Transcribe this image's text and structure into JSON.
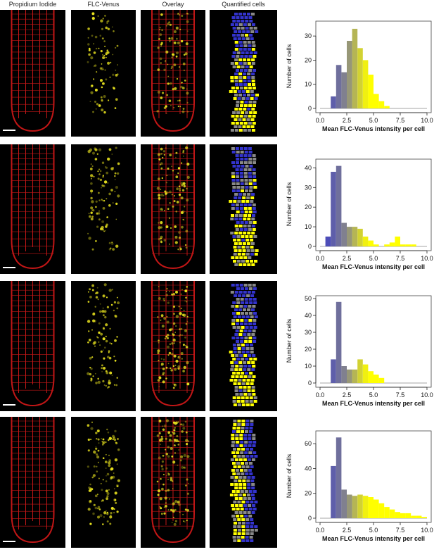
{
  "headers": {
    "pi": "Propidium Iodide",
    "flc": "FLC-Venus",
    "overlay": "Overlay",
    "quant": "Quantified cells"
  },
  "colors": {
    "pi_red": "#e21a1a",
    "venus_yellow": "#e8e21e",
    "bin_low": "#3333cc",
    "bin_mid": "#888888",
    "bin_high": "#ffff00",
    "background": "#000000"
  },
  "chart_data": [
    {
      "type": "bar",
      "xlabel": "Mean FLC-Venus intensity per cell",
      "ylabel": "Number of cells",
      "xlim": [
        0,
        10
      ],
      "ylim": [
        0,
        35
      ],
      "xticks": [
        "0.0",
        "2.5",
        "5.0",
        "7.5",
        "10.0"
      ],
      "yticks": [
        "0",
        "10",
        "20",
        "30"
      ],
      "bin_width": 0.5,
      "bins": [
        {
          "x0": 1.0,
          "value": 5
        },
        {
          "x0": 1.5,
          "value": 18
        },
        {
          "x0": 2.0,
          "value": 15
        },
        {
          "x0": 2.5,
          "value": 28
        },
        {
          "x0": 3.0,
          "value": 33
        },
        {
          "x0": 3.5,
          "value": 25
        },
        {
          "x0": 4.0,
          "value": 20
        },
        {
          "x0": 4.5,
          "value": 14
        },
        {
          "x0": 5.0,
          "value": 6
        },
        {
          "x0": 5.5,
          "value": 3
        },
        {
          "x0": 6.0,
          "value": 1
        }
      ]
    },
    {
      "type": "bar",
      "xlabel": "Mean FLC-Venus intensity per cell",
      "ylabel": "Number of cells",
      "xlim": [
        0,
        10
      ],
      "ylim": [
        0,
        43
      ],
      "xticks": [
        "0.0",
        "2.5",
        "5.0",
        "7.5",
        "10.0"
      ],
      "yticks": [
        "0",
        "10",
        "20",
        "30",
        "40"
      ],
      "bin_width": 0.5,
      "bins": [
        {
          "x0": 0.5,
          "value": 5
        },
        {
          "x0": 1.0,
          "value": 38
        },
        {
          "x0": 1.5,
          "value": 41
        },
        {
          "x0": 2.0,
          "value": 12
        },
        {
          "x0": 2.5,
          "value": 10
        },
        {
          "x0": 3.0,
          "value": 10
        },
        {
          "x0": 3.5,
          "value": 9
        },
        {
          "x0": 4.0,
          "value": 5
        },
        {
          "x0": 4.5,
          "value": 3
        },
        {
          "x0": 5.0,
          "value": 1
        },
        {
          "x0": 6.0,
          "value": 1
        },
        {
          "x0": 6.5,
          "value": 2
        },
        {
          "x0": 7.0,
          "value": 5
        },
        {
          "x0": 7.5,
          "value": 1
        },
        {
          "x0": 8.0,
          "value": 1
        },
        {
          "x0": 8.5,
          "value": 1
        }
      ]
    },
    {
      "type": "bar",
      "xlabel": "Mean FLC-Venus intensity per cell",
      "ylabel": "Number of cells",
      "xlim": [
        0,
        10
      ],
      "ylim": [
        0,
        50
      ],
      "xticks": [
        "0.0",
        "2.5",
        "5.0",
        "7.5",
        "10.0"
      ],
      "yticks": [
        "0",
        "10",
        "20",
        "30",
        "40",
        "50"
      ],
      "bin_width": 0.5,
      "bins": [
        {
          "x0": 1.0,
          "value": 14
        },
        {
          "x0": 1.5,
          "value": 48
        },
        {
          "x0": 2.0,
          "value": 10
        },
        {
          "x0": 2.5,
          "value": 8
        },
        {
          "x0": 3.0,
          "value": 8
        },
        {
          "x0": 3.5,
          "value": 14
        },
        {
          "x0": 4.0,
          "value": 11
        },
        {
          "x0": 4.5,
          "value": 7
        },
        {
          "x0": 5.0,
          "value": 5
        },
        {
          "x0": 5.5,
          "value": 3
        }
      ]
    },
    {
      "type": "bar",
      "xlabel": "Mean FLC-Venus intensity per cell",
      "ylabel": "Number of cells",
      "xlim": [
        0,
        10
      ],
      "ylim": [
        0,
        68
      ],
      "xticks": [
        "0.0",
        "2.5",
        "5.0",
        "7.5",
        "10.0"
      ],
      "yticks": [
        "0",
        "20",
        "40",
        "60"
      ],
      "bin_width": 0.5,
      "bins": [
        {
          "x0": 1.0,
          "value": 42
        },
        {
          "x0": 1.5,
          "value": 65
        },
        {
          "x0": 2.0,
          "value": 23
        },
        {
          "x0": 2.5,
          "value": 19
        },
        {
          "x0": 3.0,
          "value": 18
        },
        {
          "x0": 3.5,
          "value": 19
        },
        {
          "x0": 4.0,
          "value": 18
        },
        {
          "x0": 4.5,
          "value": 17
        },
        {
          "x0": 5.0,
          "value": 15
        },
        {
          "x0": 5.5,
          "value": 12
        },
        {
          "x0": 6.0,
          "value": 9
        },
        {
          "x0": 6.5,
          "value": 7
        },
        {
          "x0": 7.0,
          "value": 5
        },
        {
          "x0": 7.5,
          "value": 4
        },
        {
          "x0": 8.0,
          "value": 4
        },
        {
          "x0": 8.5,
          "value": 2
        },
        {
          "x0": 9.0,
          "value": 2
        },
        {
          "x0": 9.5,
          "value": 1
        }
      ]
    }
  ]
}
